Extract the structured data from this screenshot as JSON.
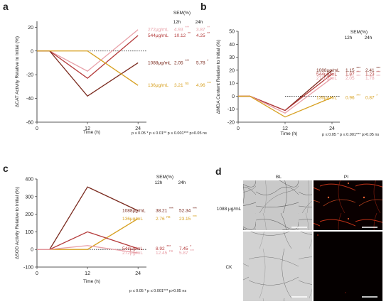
{
  "colors": {
    "c1088": "#7a2a1e",
    "c544": "#b43a3a",
    "c272": "#e8a0a8",
    "c136": "#d7a020"
  },
  "footnote": {
    "p05": "p ≤ 0.05",
    "p01": "p ≤ 0.01",
    "p001": "p ≤ 0.001",
    "pns": "p>0.05 ns"
  },
  "chart_data": [
    {
      "panel": "a",
      "type": "line",
      "ylabel": "ΔCAT Activity Relative to Initial (%)",
      "xlabel": "Time (h)",
      "xticks": [
        0,
        12,
        24
      ],
      "yticks": [
        -60,
        -40,
        -20,
        0,
        20
      ],
      "ylim": [
        -60,
        25
      ],
      "sem_header": "SEM(%)",
      "col1": "12h",
      "col2": "24h",
      "series": [
        {
          "name": "272μg/mL",
          "color": "#e8a0a8",
          "x": [
            0,
            3,
            12,
            24
          ],
          "y": [
            0,
            0,
            -17,
            18
          ],
          "sem12": "4.93",
          "sig12": "***",
          "sem24": "3.87",
          "sig24": "**"
        },
        {
          "name": "544μg/mL",
          "color": "#b43a3a",
          "x": [
            0,
            3,
            12,
            24
          ],
          "y": [
            0,
            0,
            -23,
            13
          ],
          "sem12": "10.12",
          "sig12": "**",
          "sem24": "4.25",
          "sig24": "**"
        },
        {
          "name": "1088μg/mL",
          "color": "#7a2a1e",
          "x": [
            0,
            3,
            12,
            24
          ],
          "y": [
            0,
            0,
            -38,
            -10
          ],
          "sem12": "2.05",
          "sig12": "***",
          "sem24": "5.78",
          "sig24": "*"
        },
        {
          "name": "136μg/mL",
          "color": "#d7a020",
          "x": [
            0,
            3,
            12,
            24
          ],
          "y": [
            0,
            0,
            0,
            -29
          ],
          "sem12": "3.21",
          "sig12": "ns",
          "sem24": "4.96",
          "sig24": "***"
        }
      ],
      "foot": "p ≤ 0.05 *  p ≤ 0.01**  p ≤ 0.001***  p>0.05 ns"
    },
    {
      "panel": "b",
      "type": "line",
      "ylabel": "ΔMDA Content Relative to Initial (%)",
      "xlabel": "Time (h)",
      "xticks": [
        0,
        12,
        24
      ],
      "yticks": [
        -20,
        -10,
        0,
        10,
        20,
        30,
        40,
        50
      ],
      "ylim": [
        -20,
        50
      ],
      "sem_header": "SEM(%)",
      "col1": "12h",
      "col2": "24h",
      "series": [
        {
          "name": "1088μg/mL",
          "color": "#7a2a1e",
          "x": [
            0,
            3,
            12,
            24
          ],
          "y": [
            0,
            0,
            -11,
            20
          ],
          "sem12": "1.15",
          "sig12": "***",
          "sem24": "2.41",
          "sig24": "***"
        },
        {
          "name": "544μg/mL",
          "color": "#b43a3a",
          "x": [
            0,
            3,
            12,
            24
          ],
          "y": [
            0,
            0,
            -11,
            17
          ],
          "sem12": "1.87",
          "sig12": "***",
          "sem24": "1.23",
          "sig24": "***"
        },
        {
          "name": "272μg/mL",
          "color": "#e8a0a8",
          "x": [
            0,
            3,
            12,
            24
          ],
          "y": [
            0,
            0,
            -13,
            14
          ],
          "sem12": "2.05",
          "sig12": "***",
          "sem24": "1.78",
          "sig24": "***"
        },
        {
          "name": "136μg/mL",
          "color": "#d7a020",
          "x": [
            0,
            3,
            12,
            24
          ],
          "y": [
            0,
            0,
            -16,
            -1
          ],
          "sem12": "0.96",
          "sig12": "***",
          "sem24": "0.87",
          "sig24": "*"
        }
      ],
      "foot": "p ≤ 0.05 *  p ≤ 0.001***  p>0.05 ns"
    },
    {
      "panel": "c",
      "type": "line",
      "ylabel": "ΔSOD Activity Relative to Initial (%)",
      "xlabel": "Time (h)",
      "xticks": [
        0,
        12,
        24
      ],
      "yticks": [
        -100,
        0,
        100,
        200,
        300,
        400
      ],
      "ylim": [
        -100,
        400
      ],
      "sem_header": "SEM(%)",
      "col1": "12h",
      "col2": "24h",
      "series": [
        {
          "name": "1088μg/mL",
          "color": "#7a2a1e",
          "x": [
            0,
            3,
            12,
            24
          ],
          "y": [
            0,
            0,
            355,
            220
          ],
          "sem12": "38.21",
          "sig12": "***",
          "sem24": "52.34",
          "sig24": "***"
        },
        {
          "name": "136μg/mL",
          "color": "#d7a020",
          "x": [
            0,
            3,
            12,
            24
          ],
          "y": [
            0,
            0,
            0,
            175
          ],
          "sem12": "2.76",
          "sig12": "ns",
          "sem24": "23.15",
          "sig24": "***"
        },
        {
          "name": "544μg/mL",
          "color": "#b43a3a",
          "x": [
            0,
            3,
            12,
            24
          ],
          "y": [
            0,
            0,
            100,
            5
          ],
          "sem12": "8.92",
          "sig12": "***",
          "sem24": "7.45",
          "sig24": "*"
        },
        {
          "name": "272μg/mL",
          "color": "#e8a0a8",
          "x": [
            0,
            3,
            12,
            24
          ],
          "y": [
            0,
            0,
            22,
            -20
          ],
          "sem12": "12.45",
          "sig12": "ns",
          "sem24": "5.87",
          "sig24": "***"
        }
      ],
      "foot": "p ≤ 0.05 *  p ≤ 0.001***  p>0.05 ns"
    }
  ],
  "panel_d": {
    "label": "d",
    "col1": "BL",
    "col2": "PI",
    "row1": "1088 μg/mL",
    "row2": "CK"
  },
  "panel_labels": {
    "a": "a",
    "b": "b",
    "c": "c"
  }
}
